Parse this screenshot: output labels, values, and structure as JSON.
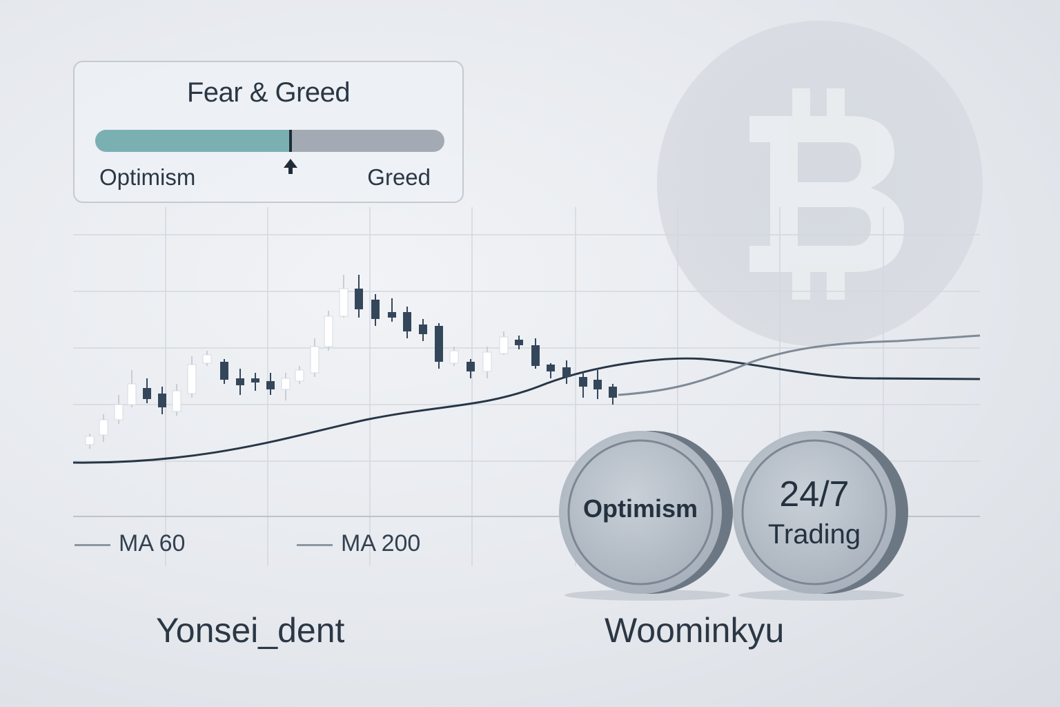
{
  "gauge": {
    "title": "Fear & Greed",
    "left_label": "Optimism",
    "right_label": "Greed",
    "level": 0.56,
    "fill_color": "#7bb0b3",
    "track_color": "#a3aab3"
  },
  "legend": [
    {
      "label": "MA 60"
    },
    {
      "label": "MA 200"
    }
  ],
  "coins": [
    {
      "label": "Optimism"
    },
    {
      "line1": "24/7",
      "line2": "Trading"
    }
  ],
  "authors": {
    "left": "Yonsei_dent",
    "right": "Woominkyu"
  },
  "background_icon": "bitcoin-icon",
  "colors": {
    "up_candle": "#ffffff",
    "down_candle": "#34465a",
    "ma_line": "#273646"
  }
}
